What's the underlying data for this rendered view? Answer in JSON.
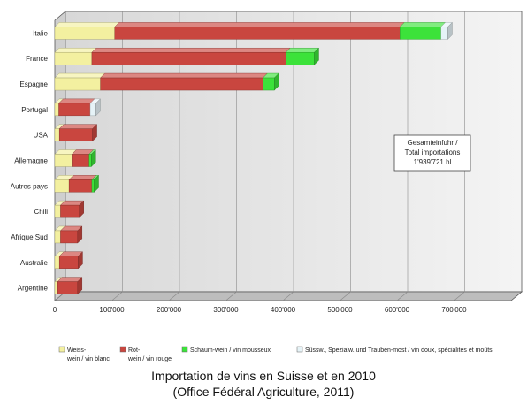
{
  "chart_data": {
    "type": "bar",
    "orientation": "horizontal",
    "stacked": true,
    "categories": [
      "Italie",
      "France",
      "Espagne",
      "Portugal",
      "USA",
      "Allemagne",
      "Autres pays",
      "Chili",
      "Afrique Sud",
      "Australie",
      "Argentine"
    ],
    "series": [
      {
        "name": "Weiss- wein / vin blanc",
        "color": "#f3f0a0",
        "values": [
          105000,
          65000,
          80000,
          7000,
          8000,
          30000,
          25000,
          10000,
          10000,
          8000,
          5000
        ]
      },
      {
        "name": "Rot- wein / vin rouge",
        "color": "#c9463f",
        "values": [
          500000,
          340000,
          285000,
          55000,
          58000,
          30000,
          40000,
          33000,
          30000,
          33000,
          35000
        ]
      },
      {
        "name": "Schaum-wein / vin mousseux",
        "color": "#3ce23a",
        "values": [
          72000,
          50000,
          20000,
          0,
          0,
          4000,
          4000,
          0,
          0,
          0,
          0
        ]
      },
      {
        "name": "Süssw., Spezialw. und Trauben-most / vin doux, spécialités et moûts",
        "color": "#e6f3f7",
        "values": [
          12000,
          0,
          0,
          10000,
          0,
          0,
          0,
          0,
          0,
          0,
          0
        ]
      }
    ],
    "xlim": [
      0,
      800000
    ],
    "x_ticks": [
      "0",
      "100'000",
      "200'000",
      "300'000",
      "400'000",
      "500'000",
      "600'000",
      "700'000"
    ],
    "grid": true,
    "legend_position": "bottom",
    "annotation": [
      "Gesamteinfuhr /",
      "Total importations",
      "1'939'721 hl"
    ]
  },
  "caption": {
    "line1": "Importation de vins en Suisse et en 2010",
    "line2": "(Office Fédéral Agriculture, 2011)"
  }
}
